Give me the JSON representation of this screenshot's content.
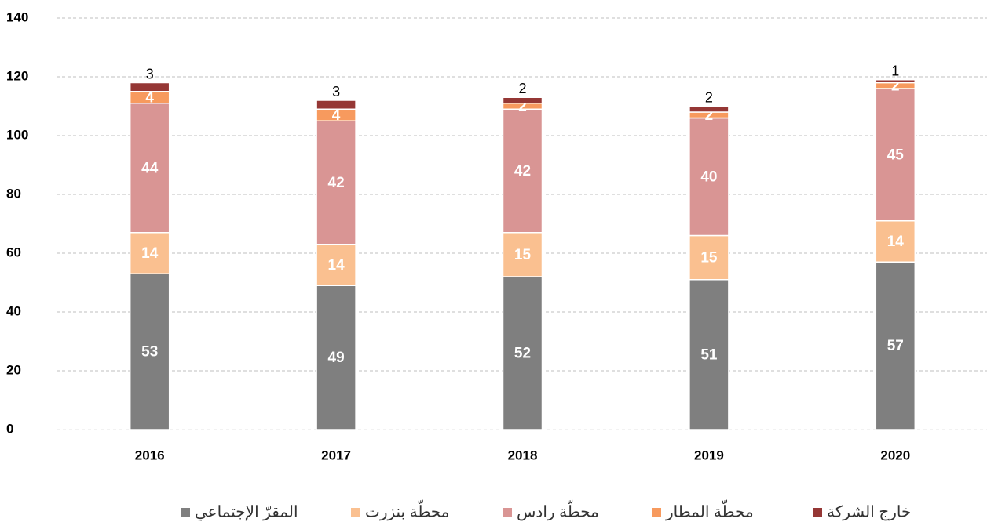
{
  "chart_data": {
    "type": "stacked-bar",
    "categories": [
      "2016",
      "2017",
      "2018",
      "2019",
      "2020"
    ],
    "series": [
      {
        "name": "المقرّ الإجتماعي",
        "color": "#7f7f7f",
        "values": [
          53,
          49,
          52,
          51,
          57
        ]
      },
      {
        "name": "محطّة بنزرت",
        "color": "#fac090",
        "values": [
          14,
          14,
          15,
          15,
          14
        ]
      },
      {
        "name": "محطّة رادس",
        "color": "#d99594",
        "values": [
          44,
          42,
          42,
          40,
          45
        ]
      },
      {
        "name": "محطّة المطار",
        "color": "#f79a5e",
        "values": [
          4,
          4,
          2,
          2,
          2
        ]
      },
      {
        "name": "خارج الشركة",
        "color": "#953735",
        "values": [
          3,
          3,
          2,
          2,
          1
        ]
      }
    ],
    "ylim": [
      0,
      140
    ],
    "yticks": [
      0,
      20,
      40,
      60,
      80,
      100,
      120,
      140
    ],
    "grid": true,
    "legend": "bottom"
  }
}
